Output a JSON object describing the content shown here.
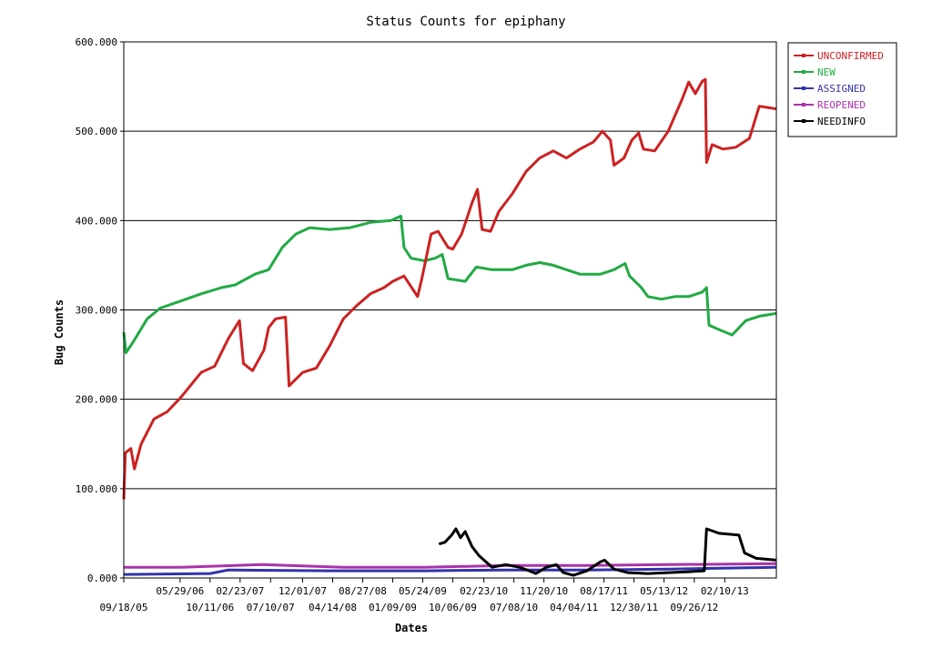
{
  "chart_data": {
    "type": "line",
    "title": "Status Counts for epiphany",
    "xlabel": "Dates",
    "ylabel": "Bug Counts",
    "ylim": [
      0,
      600
    ],
    "yticks": [
      "0.000",
      "100.000",
      "200.000",
      "300.000",
      "400.000",
      "500.000",
      "600.000"
    ],
    "xlim": [
      "2005-09-18",
      "2013-09-30"
    ],
    "xticks_upper": [
      {
        "date": "2006-05-29",
        "label": "05/29/06"
      },
      {
        "date": "2007-02-23",
        "label": "02/23/07"
      },
      {
        "date": "2007-12-01",
        "label": "12/01/07"
      },
      {
        "date": "2008-08-27",
        "label": "08/27/08"
      },
      {
        "date": "2009-05-24",
        "label": "05/24/09"
      },
      {
        "date": "2010-02-23",
        "label": "02/23/10"
      },
      {
        "date": "2010-11-20",
        "label": "11/20/10"
      },
      {
        "date": "2011-08-17",
        "label": "08/17/11"
      },
      {
        "date": "2012-05-13",
        "label": "05/13/12"
      },
      {
        "date": "2013-02-10",
        "label": "02/10/13"
      }
    ],
    "xticks_lower": [
      {
        "date": "2005-09-18",
        "label": "09/18/05"
      },
      {
        "date": "2006-10-11",
        "label": "10/11/06"
      },
      {
        "date": "2007-07-10",
        "label": "07/10/07"
      },
      {
        "date": "2008-04-14",
        "label": "04/14/08"
      },
      {
        "date": "2009-01-09",
        "label": "01/09/09"
      },
      {
        "date": "2009-10-06",
        "label": "10/06/09"
      },
      {
        "date": "2010-07-08",
        "label": "07/08/10"
      },
      {
        "date": "2011-04-04",
        "label": "04/04/11"
      },
      {
        "date": "2011-12-30",
        "label": "12/30/11"
      },
      {
        "date": "2012-09-26",
        "label": "09/26/12"
      }
    ],
    "grid": "horizontal",
    "legend": "right",
    "series": [
      {
        "name": "UNCONFIRMED",
        "color": "#cc2222",
        "points": [
          [
            "2005-09-18",
            88
          ],
          [
            "2005-09-25",
            140
          ],
          [
            "2005-10-20",
            145
          ],
          [
            "2005-11-05",
            122
          ],
          [
            "2005-12-05",
            150
          ],
          [
            "2006-02-01",
            178
          ],
          [
            "2006-04-01",
            186
          ],
          [
            "2006-06-01",
            202
          ],
          [
            "2006-09-01",
            230
          ],
          [
            "2006-11-01",
            237
          ],
          [
            "2007-01-01",
            268
          ],
          [
            "2007-02-20",
            288
          ],
          [
            "2007-03-10",
            240
          ],
          [
            "2007-04-20",
            232
          ],
          [
            "2007-06-10",
            255
          ],
          [
            "2007-07-01",
            280
          ],
          [
            "2007-08-01",
            290
          ],
          [
            "2007-09-15",
            292
          ],
          [
            "2007-10-01",
            215
          ],
          [
            "2007-12-01",
            230
          ],
          [
            "2008-02-01",
            235
          ],
          [
            "2008-04-01",
            260
          ],
          [
            "2008-06-01",
            290
          ],
          [
            "2008-08-01",
            305
          ],
          [
            "2008-10-01",
            318
          ],
          [
            "2008-12-01",
            325
          ],
          [
            "2009-01-09",
            332
          ],
          [
            "2009-03-01",
            338
          ],
          [
            "2009-05-01",
            315
          ],
          [
            "2009-05-20",
            335
          ],
          [
            "2009-07-01",
            385
          ],
          [
            "2009-08-01",
            388
          ],
          [
            "2009-09-15",
            370
          ],
          [
            "2009-10-06",
            368
          ],
          [
            "2009-11-15",
            385
          ],
          [
            "2010-01-01",
            420
          ],
          [
            "2010-01-25",
            435
          ],
          [
            "2010-02-15",
            390
          ],
          [
            "2010-03-25",
            388
          ],
          [
            "2010-05-01",
            410
          ],
          [
            "2010-07-01",
            430
          ],
          [
            "2010-09-01",
            455
          ],
          [
            "2010-11-01",
            470
          ],
          [
            "2011-01-01",
            478
          ],
          [
            "2011-03-01",
            470
          ],
          [
            "2011-05-01",
            480
          ],
          [
            "2011-07-01",
            488
          ],
          [
            "2011-08-10",
            500
          ],
          [
            "2011-09-15",
            490
          ],
          [
            "2011-10-01",
            462
          ],
          [
            "2011-11-15",
            470
          ],
          [
            "2011-12-20",
            490
          ],
          [
            "2012-01-20",
            498
          ],
          [
            "2012-02-10",
            480
          ],
          [
            "2012-04-01",
            478
          ],
          [
            "2012-06-01",
            500
          ],
          [
            "2012-08-01",
            535
          ],
          [
            "2012-09-01",
            555
          ],
          [
            "2012-10-01",
            542
          ],
          [
            "2012-11-01",
            556
          ],
          [
            "2012-11-15",
            558
          ],
          [
            "2012-11-20",
            465
          ],
          [
            "2012-12-15",
            485
          ],
          [
            "2013-02-01",
            480
          ],
          [
            "2013-04-01",
            482
          ],
          [
            "2013-06-01",
            492
          ],
          [
            "2013-07-15",
            528
          ],
          [
            "2013-09-30",
            525
          ]
        ]
      },
      {
        "name": "NEW",
        "color": "#22aa44",
        "points": [
          [
            "2005-09-18",
            275
          ],
          [
            "2005-09-28",
            252
          ],
          [
            "2005-11-01",
            265
          ],
          [
            "2006-01-01",
            290
          ],
          [
            "2006-03-01",
            302
          ],
          [
            "2006-06-01",
            310
          ],
          [
            "2006-09-01",
            318
          ],
          [
            "2006-12-01",
            325
          ],
          [
            "2007-02-01",
            328
          ],
          [
            "2007-05-01",
            340
          ],
          [
            "2007-07-01",
            345
          ],
          [
            "2007-09-01",
            370
          ],
          [
            "2007-11-01",
            385
          ],
          [
            "2008-01-01",
            392
          ],
          [
            "2008-04-01",
            390
          ],
          [
            "2008-07-01",
            392
          ],
          [
            "2008-10-01",
            398
          ],
          [
            "2009-01-01",
            400
          ],
          [
            "2009-02-15",
            405
          ],
          [
            "2009-03-01",
            370
          ],
          [
            "2009-04-01",
            358
          ],
          [
            "2009-06-01",
            355
          ],
          [
            "2009-07-20",
            358
          ],
          [
            "2009-08-20",
            362
          ],
          [
            "2009-09-15",
            335
          ],
          [
            "2009-12-01",
            332
          ],
          [
            "2010-01-20",
            348
          ],
          [
            "2010-04-01",
            345
          ],
          [
            "2010-07-01",
            345
          ],
          [
            "2010-09-01",
            350
          ],
          [
            "2010-11-01",
            353
          ],
          [
            "2011-01-01",
            350
          ],
          [
            "2011-03-01",
            345
          ],
          [
            "2011-05-01",
            340
          ],
          [
            "2011-08-01",
            340
          ],
          [
            "2011-10-01",
            345
          ],
          [
            "2011-11-20",
            352
          ],
          [
            "2011-12-10",
            338
          ],
          [
            "2012-02-01",
            325
          ],
          [
            "2012-03-01",
            315
          ],
          [
            "2012-05-01",
            312
          ],
          [
            "2012-07-01",
            315
          ],
          [
            "2012-09-01",
            315
          ],
          [
            "2012-11-01",
            320
          ],
          [
            "2012-11-20",
            325
          ],
          [
            "2012-12-01",
            283
          ],
          [
            "2013-01-15",
            278
          ],
          [
            "2013-03-15",
            272
          ],
          [
            "2013-05-15",
            288
          ],
          [
            "2013-07-15",
            293
          ],
          [
            "2013-09-30",
            296
          ]
        ]
      },
      {
        "name": "ASSIGNED",
        "color": "#3333aa",
        "points": [
          [
            "2005-09-18",
            4
          ],
          [
            "2006-10-11",
            5
          ],
          [
            "2007-01-01",
            9
          ],
          [
            "2008-04-01",
            8
          ],
          [
            "2009-06-01",
            8
          ],
          [
            "2010-06-01",
            9
          ],
          [
            "2011-06-01",
            9
          ],
          [
            "2012-06-01",
            10
          ],
          [
            "2013-09-30",
            12
          ]
        ]
      },
      {
        "name": "REOPENED",
        "color": "#aa33aa",
        "points": [
          [
            "2005-09-18",
            12
          ],
          [
            "2006-06-01",
            12
          ],
          [
            "2007-06-01",
            15
          ],
          [
            "2008-06-01",
            12
          ],
          [
            "2009-06-01",
            12
          ],
          [
            "2010-06-01",
            14
          ],
          [
            "2011-06-01",
            14
          ],
          [
            "2012-06-01",
            15
          ],
          [
            "2013-09-30",
            16
          ]
        ]
      },
      {
        "name": "NEEDINFO",
        "color": "#000000",
        "points": [
          [
            "2009-08-05",
            38
          ],
          [
            "2009-09-01",
            40
          ],
          [
            "2009-10-01",
            48
          ],
          [
            "2009-10-20",
            55
          ],
          [
            "2009-11-10",
            45
          ],
          [
            "2009-12-01",
            52
          ],
          [
            "2010-01-01",
            35
          ],
          [
            "2010-02-01",
            25
          ],
          [
            "2010-04-01",
            12
          ],
          [
            "2010-06-01",
            15
          ],
          [
            "2010-08-01",
            12
          ],
          [
            "2010-09-15",
            8
          ],
          [
            "2010-10-15",
            5
          ],
          [
            "2010-12-01",
            12
          ],
          [
            "2011-01-15",
            15
          ],
          [
            "2011-02-15",
            6
          ],
          [
            "2011-04-01",
            3
          ],
          [
            "2011-06-01",
            8
          ],
          [
            "2011-08-01",
            18
          ],
          [
            "2011-08-20",
            20
          ],
          [
            "2011-10-01",
            10
          ],
          [
            "2011-12-01",
            6
          ],
          [
            "2012-03-01",
            5
          ],
          [
            "2012-06-01",
            6
          ],
          [
            "2012-09-01",
            7
          ],
          [
            "2012-11-10",
            8
          ],
          [
            "2012-11-20",
            55
          ],
          [
            "2013-01-15",
            50
          ],
          [
            "2013-04-15",
            48
          ],
          [
            "2013-05-10",
            28
          ],
          [
            "2013-07-01",
            22
          ],
          [
            "2013-09-30",
            20
          ]
        ]
      }
    ]
  }
}
